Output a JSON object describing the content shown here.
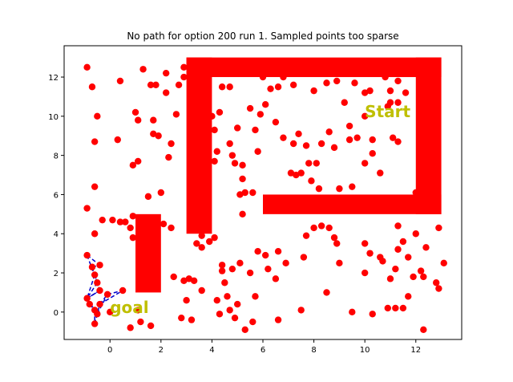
{
  "chart_data": {
    "type": "scatter",
    "title": "No path for option 200 run 1. Sampled points too sparse",
    "xlabel": "",
    "ylabel": "",
    "xlim": [
      -1.8,
      13.8
    ],
    "ylim": [
      -1.4,
      13.6
    ],
    "xticks": [
      0,
      2,
      4,
      6,
      8,
      10,
      12
    ],
    "yticks": [
      0,
      2,
      4,
      6,
      8,
      10,
      12
    ],
    "xtick_labels": [
      "0",
      "2",
      "4",
      "6",
      "8",
      "10",
      "12"
    ],
    "ytick_labels": [
      "0",
      "2",
      "4",
      "6",
      "8",
      "10",
      "12"
    ],
    "grid": false,
    "colors": {
      "obstacle": "#ff0000",
      "points": "#ff0000",
      "edges": "#0000cc",
      "labels": "#bfbf00"
    },
    "obstacles": [
      {
        "x0": 1,
        "x1": 2,
        "y0": 1,
        "y1": 5
      },
      {
        "x0": 3,
        "x1": 4,
        "y0": 4,
        "y1": 13
      },
      {
        "x0": 3,
        "x1": 13,
        "y0": 12,
        "y1": 13
      },
      {
        "x0": 12,
        "x1": 13,
        "y0": 5,
        "y1": 13
      },
      {
        "x0": 6,
        "x1": 13,
        "y0": 5,
        "y1": 6
      }
    ],
    "annotations": [
      {
        "text": "Start",
        "x": 10,
        "y": 10
      },
      {
        "text": "goal",
        "x": 0,
        "y": 0
      }
    ],
    "points": [
      [
        -0.9,
        12.5
      ],
      [
        -0.7,
        11.5
      ],
      [
        -0.5,
        10
      ],
      [
        -0.6,
        8.7
      ],
      [
        -0.9,
        5.3
      ],
      [
        -0.6,
        6.4
      ],
      [
        -0.6,
        4
      ],
      [
        -0.3,
        4.7
      ],
      [
        0.1,
        4.7
      ],
      [
        0.4,
        4.6
      ],
      [
        0.6,
        4.6
      ],
      [
        0.9,
        4.9
      ],
      [
        0.9,
        3.8
      ],
      [
        0.8,
        4.3
      ],
      [
        0.4,
        11.8
      ],
      [
        1.0,
        10.2
      ],
      [
        1.1,
        9.8
      ],
      [
        1.3,
        12.4
      ],
      [
        1.6,
        11.6
      ],
      [
        1.7,
        9.8
      ],
      [
        1.7,
        9.1
      ],
      [
        1.8,
        11.6
      ],
      [
        2.2,
        12.2
      ],
      [
        2.2,
        11.2
      ],
      [
        2.6,
        10.1
      ],
      [
        2.7,
        11.6
      ],
      [
        2.9,
        12.5
      ],
      [
        2.9,
        12.0
      ],
      [
        0.3,
        8.8
      ],
      [
        0.9,
        7.5
      ],
      [
        1.1,
        7.7
      ],
      [
        1.5,
        5.9
      ],
      [
        2.0,
        6.1
      ],
      [
        1.9,
        9.0
      ],
      [
        2.4,
        8.6
      ],
      [
        2.3,
        7.9
      ],
      [
        2.1,
        4.5
      ],
      [
        2.4,
        4.3
      ],
      [
        2.5,
        1.8
      ],
      [
        2.8,
        -0.3
      ],
      [
        2.9,
        1.6
      ],
      [
        3.1,
        1.7
      ],
      [
        3.3,
        1.6
      ],
      [
        3.2,
        -0.4
      ],
      [
        3.0,
        0.6
      ],
      [
        3.6,
        1.1
      ],
      [
        3.6,
        3.9
      ],
      [
        3.4,
        3.5
      ],
      [
        3.6,
        3.3
      ],
      [
        3.9,
        3.6
      ],
      [
        4.1,
        3.8
      ],
      [
        4.2,
        0.6
      ],
      [
        4.3,
        -0.1
      ],
      [
        4.4,
        2.1
      ],
      [
        4.4,
        2.4
      ],
      [
        4.5,
        1.5
      ],
      [
        4.6,
        0.8
      ],
      [
        4.7,
        0.1
      ],
      [
        4.8,
        2.2
      ],
      [
        4.9,
        -0.3
      ],
      [
        5.0,
        0.4
      ],
      [
        5.1,
        2.5
      ],
      [
        5.3,
        -0.9
      ],
      [
        5.6,
        -0.5
      ],
      [
        5.7,
        0.8
      ],
      [
        5.5,
        2.0
      ],
      [
        5.8,
        3.1
      ],
      [
        6.1,
        2.9
      ],
      [
        6.2,
        2.2
      ],
      [
        6.5,
        1.7
      ],
      [
        6.6,
        3.1
      ],
      [
        6.6,
        -0.4
      ],
      [
        6.9,
        2.5
      ],
      [
        7.5,
        0.1
      ],
      [
        7.6,
        2.8
      ],
      [
        7.7,
        3.9
      ],
      [
        4.0,
        10.0
      ],
      [
        4.1,
        9.3
      ],
      [
        4.2,
        8.2
      ],
      [
        4.1,
        7.7
      ],
      [
        4.3,
        10.2
      ],
      [
        4.4,
        11.5
      ],
      [
        4.7,
        11.5
      ],
      [
        4.7,
        8.6
      ],
      [
        4.8,
        8.0
      ],
      [
        4.9,
        7.6
      ],
      [
        5.0,
        9.4
      ],
      [
        5.2,
        5.0
      ],
      [
        5.1,
        6.0
      ],
      [
        5.2,
        6.8
      ],
      [
        5.2,
        7.5
      ],
      [
        5.3,
        6.1
      ],
      [
        5.6,
        6.1
      ],
      [
        5.5,
        10.4
      ],
      [
        5.7,
        9.3
      ],
      [
        5.8,
        8.2
      ],
      [
        6.0,
        12.0
      ],
      [
        5.9,
        10.1
      ],
      [
        6.1,
        10.6
      ],
      [
        6.3,
        11.4
      ],
      [
        6.6,
        11.5
      ],
      [
        6.5,
        9.7
      ],
      [
        6.8,
        12.0
      ],
      [
        6.8,
        8.9
      ],
      [
        7.2,
        11.6
      ],
      [
        7.1,
        7.1
      ],
      [
        7.2,
        8.6
      ],
      [
        7.3,
        7.0
      ],
      [
        7.4,
        9.1
      ],
      [
        7.5,
        7.1
      ],
      [
        7.7,
        8.5
      ],
      [
        7.8,
        7.6
      ],
      [
        7.9,
        6.7
      ],
      [
        8.0,
        11.3
      ],
      [
        8.1,
        7.6
      ],
      [
        8.2,
        6.3
      ],
      [
        8.3,
        8.6
      ],
      [
        8.5,
        11.7
      ],
      [
        8.6,
        9.2
      ],
      [
        8.8,
        8.4
      ],
      [
        8.9,
        11.8
      ],
      [
        9.0,
        6.3
      ],
      [
        9.2,
        10.7
      ],
      [
        9.4,
        9.5
      ],
      [
        9.4,
        8.8
      ],
      [
        9.5,
        6.4
      ],
      [
        9.6,
        11.7
      ],
      [
        9.7,
        8.9
      ],
      [
        10.0,
        11.2
      ],
      [
        10.0,
        7.6
      ],
      [
        10.2,
        11.3
      ],
      [
        10.3,
        8.1
      ],
      [
        10.3,
        8.8
      ],
      [
        10.6,
        7.1
      ],
      [
        10.8,
        12.0
      ],
      [
        10.9,
        10.5
      ],
      [
        11.0,
        11.3
      ],
      [
        11.0,
        10.7
      ],
      [
        11.1,
        8.9
      ],
      [
        11.3,
        11.8
      ],
      [
        11.3,
        10.7
      ],
      [
        11.3,
        8.7
      ],
      [
        11.6,
        11.2
      ],
      [
        12.0,
        6.1
      ],
      [
        8.0,
        4.3
      ],
      [
        8.3,
        4.4
      ],
      [
        8.6,
        4.3
      ],
      [
        8.8,
        3.8
      ],
      [
        8.9,
        3.5
      ],
      [
        8.5,
        1.0
      ],
      [
        9.0,
        2.5
      ],
      [
        9.5,
        0.0
      ],
      [
        10.0,
        3.5
      ],
      [
        10.2,
        3.0
      ],
      [
        10.3,
        -0.1
      ],
      [
        10.0,
        2.0
      ],
      [
        10.6,
        2.8
      ],
      [
        10.7,
        2.6
      ],
      [
        10.9,
        0.2
      ],
      [
        11.2,
        0.2
      ],
      [
        11.0,
        1.7
      ],
      [
        11.2,
        2.2
      ],
      [
        11.3,
        3.2
      ],
      [
        11.3,
        4.4
      ],
      [
        11.5,
        3.6
      ],
      [
        11.5,
        0.2
      ],
      [
        11.7,
        0.8
      ],
      [
        11.9,
        1.8
      ],
      [
        12.0,
        4.0
      ],
      [
        12.2,
        2.1
      ],
      [
        12.3,
        1.8
      ],
      [
        12.4,
        3.3
      ],
      [
        12.3,
        -0.9
      ],
      [
        12.8,
        1.5
      ],
      [
        12.9,
        4.3
      ],
      [
        12.9,
        1.2
      ],
      [
        13.1,
        2.5
      ],
      [
        11.7,
        2.8
      ],
      [
        -0.9,
        2.9
      ],
      [
        -0.7,
        2.3
      ],
      [
        -0.4,
        2.4
      ],
      [
        -0.5,
        1.5
      ],
      [
        -0.4,
        1.1
      ],
      [
        -0.6,
        1.9
      ],
      [
        -0.9,
        0.7
      ],
      [
        -0.8,
        0.4
      ],
      [
        -0.6,
        0.1
      ],
      [
        -0.5,
        -0.1
      ],
      [
        -0.6,
        -0.6
      ],
      [
        -0.4,
        0.4
      ],
      [
        -0.1,
        0.9
      ],
      [
        0.5,
        1.1
      ],
      [
        0.8,
        -0.8
      ],
      [
        1.1,
        0.1
      ],
      [
        1.2,
        -0.5
      ],
      [
        1.6,
        -0.7
      ],
      [
        10.0,
        10.0
      ],
      [
        0.0,
        0.0
      ]
    ],
    "edges": [
      [
        [
          -0.9,
          2.9
        ],
        [
          -0.4,
          2.4
        ]
      ],
      [
        [
          -0.7,
          2.3
        ],
        [
          -0.4,
          2.4
        ]
      ],
      [
        [
          -0.7,
          2.3
        ],
        [
          -0.5,
          1.5
        ]
      ],
      [
        [
          -0.9,
          2.9
        ],
        [
          -0.5,
          1.5
        ]
      ],
      [
        [
          -0.6,
          1.9
        ],
        [
          -0.4,
          1.1
        ]
      ],
      [
        [
          -0.5,
          1.5
        ],
        [
          -0.9,
          0.7
        ]
      ],
      [
        [
          -0.4,
          1.1
        ],
        [
          -0.9,
          0.7
        ]
      ],
      [
        [
          -0.9,
          0.7
        ],
        [
          -0.6,
          0.1
        ]
      ],
      [
        [
          -0.8,
          0.4
        ],
        [
          -0.5,
          -0.1
        ]
      ],
      [
        [
          -0.6,
          0.1
        ],
        [
          -0.6,
          -0.6
        ]
      ],
      [
        [
          -0.5,
          -0.1
        ],
        [
          -0.6,
          -0.6
        ]
      ],
      [
        [
          -0.4,
          0.4
        ],
        [
          -0.1,
          0.9
        ]
      ],
      [
        [
          -0.1,
          0.9
        ],
        [
          0.5,
          1.1
        ]
      ],
      [
        [
          -0.4,
          0.4
        ],
        [
          0.5,
          1.1
        ]
      ],
      [
        [
          -0.9,
          0.7
        ],
        [
          -0.4,
          1.1
        ]
      ],
      [
        [
          -0.6,
          -0.6
        ],
        [
          -0.4,
          0.4
        ]
      ],
      [
        [
          -0.6,
          1.9
        ],
        [
          -0.9,
          0.7
        ]
      ],
      [
        [
          -0.5,
          -0.1
        ],
        [
          -0.1,
          0.9
        ]
      ]
    ]
  }
}
